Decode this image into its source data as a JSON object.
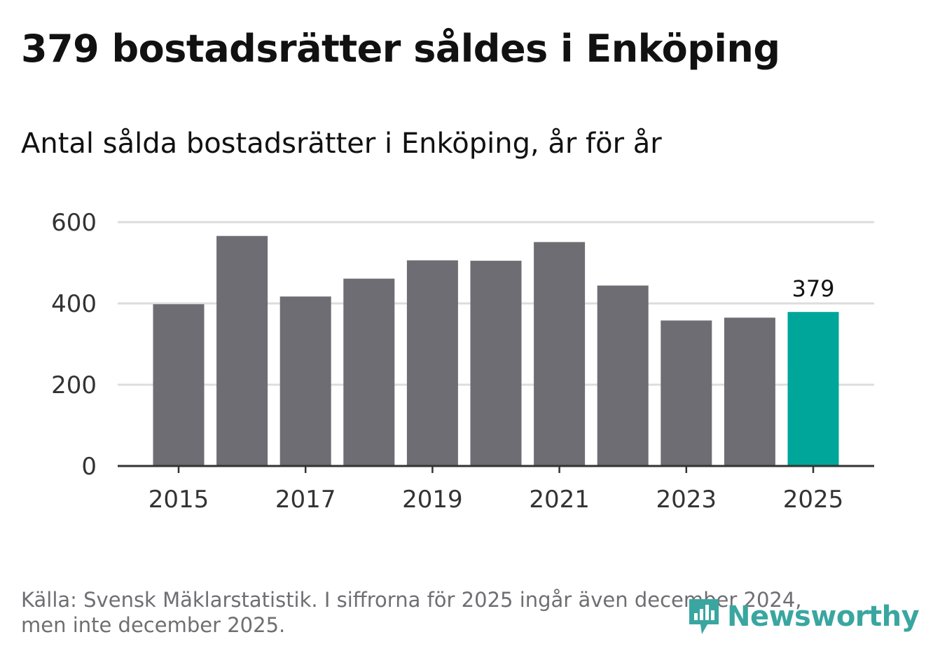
{
  "title": "379 bostadsrätter såldes i Enköping",
  "subtitle": "Antal sålda bostadsrätter i Enköping, år för år",
  "source_line1": "Källa: Svensk Mäklarstatistik. I siffrorna för 2025 ingår även december 2024,",
  "source_line2": "men inte december 2025.",
  "brand": "Newsworthy",
  "colors": {
    "bar": "#6e6d73",
    "highlight": "#00a69a",
    "grid": "#dddddd",
    "axis": "#333333",
    "logo": "#3aa6a0"
  },
  "chart_data": {
    "type": "bar",
    "categories": [
      "2015",
      "2016",
      "2017",
      "2018",
      "2019",
      "2020",
      "2021",
      "2022",
      "2023",
      "2024",
      "2025"
    ],
    "values": [
      398,
      566,
      417,
      461,
      506,
      505,
      551,
      444,
      358,
      365,
      379
    ],
    "highlight_index": 10,
    "highlight_label": "379",
    "ylim": [
      0,
      600
    ],
    "yticks": [
      0,
      200,
      400,
      600
    ],
    "xtick_labels": [
      "2015",
      "2017",
      "2019",
      "2021",
      "2023",
      "2025"
    ],
    "title": "Antal sålda bostadsrätter i Enköping, år för år",
    "xlabel": "",
    "ylabel": "",
    "grid": true
  }
}
